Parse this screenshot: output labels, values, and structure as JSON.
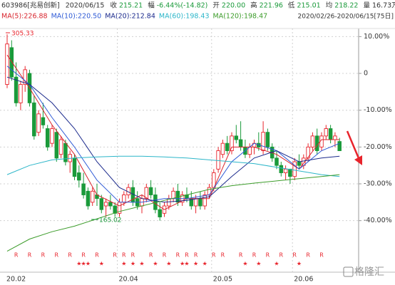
{
  "chart_data": {
    "type": "candlestick",
    "info": {
      "code": "603986[兆易创新]",
      "date": "2020/06/15",
      "fields": [
        {
          "label": "收",
          "value": "215.21",
          "color": "#1a9a3a"
        },
        {
          "label": "幅",
          "value": "-6.44%(-14.82)",
          "color": "#1a9a3a"
        },
        {
          "label": "开",
          "value": "220.00",
          "color": "#1a9a3a"
        },
        {
          "label": "高",
          "value": "221.96",
          "color": "#1a9a3a"
        },
        {
          "label": "低",
          "value": "215.01",
          "color": "#1a9a3a"
        },
        {
          "label": "均",
          "value": "218.22",
          "color": "#1a9a3a"
        },
        {
          "label": "量",
          "value": "16.73万",
          "color": "#333333"
        }
      ],
      "range": "2020/02/26-2020/06/15[75日]"
    },
    "categories": [
      "20.02",
      null,
      null,
      null,
      null,
      null,
      null,
      null,
      null,
      null,
      null,
      null,
      null,
      null,
      null,
      null,
      null,
      null,
      null,
      null,
      null,
      null,
      null,
      null,
      null,
      "20.04",
      null,
      null,
      null,
      null,
      null,
      null,
      null,
      null,
      null,
      null,
      null,
      null,
      null,
      null,
      null,
      null,
      null,
      null,
      null,
      null,
      "20.05",
      null,
      null,
      null,
      null,
      null,
      null,
      null,
      null,
      null,
      null,
      null,
      null,
      null,
      null,
      null,
      null,
      null,
      "20.06",
      null,
      null,
      null,
      null,
      null,
      null,
      null,
      null,
      null,
      null
    ],
    "open": [
      -3,
      7,
      -1,
      -8,
      -3,
      0,
      -8,
      -16,
      -12,
      -15,
      -19,
      -16,
      -22,
      -19,
      -24,
      -23,
      -27,
      -30,
      -32,
      -35,
      -33,
      -34,
      -36,
      -35,
      -36,
      -38,
      -35,
      -33,
      -31,
      -34,
      -36,
      -34,
      -31,
      -33,
      -37,
      -38,
      -36,
      -34,
      -32,
      -35,
      -33,
      -34,
      -36,
      -34,
      -36,
      -33,
      -31,
      -26,
      -22,
      -19,
      -21,
      -17,
      -18,
      -20,
      -22,
      -20,
      -19,
      -21,
      -16,
      -20,
      -23,
      -25,
      -27,
      -26,
      -28,
      -24,
      -25,
      -23,
      -20,
      -17,
      -20,
      -17,
      -15,
      -18,
      -18.5
    ],
    "high": [
      10.6,
      9,
      3,
      -2,
      2,
      1,
      -6,
      -10,
      -8,
      -14,
      -14,
      -15,
      -17,
      -18,
      -21,
      -22,
      -25,
      -27,
      -31,
      -31,
      -30,
      -33,
      -34,
      -33,
      -35,
      -34,
      -32,
      -30,
      -29,
      -32,
      -33,
      -30,
      -29,
      -31,
      -35,
      -35,
      -33,
      -31,
      -30,
      -32,
      -31,
      -32,
      -33,
      -32,
      -32,
      -30,
      -26,
      -20,
      -18,
      -17,
      -16,
      -14,
      -13,
      -18,
      -19,
      -18,
      -16,
      -13,
      -15,
      -19,
      -21,
      -24,
      -25,
      -26,
      -23,
      -22,
      -22,
      -19,
      -16,
      -15,
      -16,
      -14,
      -14,
      -16,
      -17.5
    ],
    "low": [
      -4,
      -2,
      -9,
      -10,
      -5,
      -9,
      -18,
      -17,
      -15,
      -21,
      -20,
      -24,
      -23,
      -25,
      -27,
      -29,
      -31,
      -34,
      -37,
      -36,
      -36,
      -38,
      -39,
      -37,
      -39,
      -39,
      -36,
      -34,
      -36,
      -37,
      -38,
      -35,
      -34,
      -38,
      -40,
      -39,
      -37,
      -35,
      -36,
      -36,
      -35,
      -37,
      -38,
      -37,
      -37,
      -34,
      -32,
      -27,
      -23,
      -22,
      -22,
      -19,
      -21,
      -23,
      -23,
      -22,
      -21,
      -22,
      -21,
      -24,
      -26,
      -28,
      -29,
      -30,
      -29,
      -26,
      -26,
      -24,
      -21,
      -22,
      -21,
      -18,
      -19,
      -20,
      -21
    ],
    "close": [
      8,
      -1,
      -8,
      -3,
      1,
      -8,
      -17,
      -11,
      -14,
      -20,
      -15,
      -23,
      -18,
      -24,
      -22,
      -28,
      -29,
      -33,
      -36,
      -32,
      -34,
      -37,
      -35,
      -36,
      -38,
      -35,
      -33,
      -31,
      -35,
      -36,
      -34,
      -31,
      -33,
      -37,
      -39,
      -36,
      -34,
      -32,
      -35,
      -33,
      -34,
      -36,
      -34,
      -36,
      -33,
      -31,
      -27,
      -21,
      -19,
      -21,
      -17,
      -18,
      -20,
      -22,
      -20,
      -19,
      -20,
      -16,
      -20,
      -23,
      -25,
      -27,
      -26,
      -28,
      -24,
      -25,
      -23,
      -20,
      -17,
      -21,
      -17,
      -15,
      -18,
      -17,
      -21
    ],
    "up_color": "#e8242c",
    "down_color": "#1a9a3a",
    "series": [
      {
        "name": "MA(5):226.88",
        "color": "#d8262e",
        "x": [
          0,
          5,
          10,
          15,
          20,
          25,
          30,
          35,
          40,
          45,
          50,
          55,
          60,
          65,
          70,
          74
        ],
        "values": [
          5,
          -4,
          -14,
          -22,
          -33,
          -36,
          -33,
          -37,
          -34,
          -34,
          -20,
          -20,
          -22,
          -26,
          -18,
          -18
        ]
      },
      {
        "name": "MA(10):220.50",
        "color": "#2f5bd6",
        "x": [
          0,
          5,
          10,
          15,
          20,
          25,
          30,
          35,
          40,
          45,
          50,
          55,
          60,
          65,
          70,
          74
        ],
        "values": [
          2,
          -3,
          -12,
          -20,
          -29,
          -35,
          -35,
          -34,
          -34,
          -33,
          -24,
          -19,
          -21,
          -26,
          -21,
          -19
        ]
      },
      {
        "name": "MA(20):212.84",
        "color": "#1b2a8c",
        "x": [
          0,
          5,
          10,
          15,
          20,
          25,
          30,
          35,
          40,
          45,
          50,
          55,
          60,
          65,
          70,
          74
        ],
        "values": [
          -1,
          -3,
          -8,
          -15,
          -24,
          -31,
          -34,
          -35,
          -34.5,
          -33.5,
          -28,
          -23,
          -21,
          -24,
          -23,
          -22.5
        ]
      },
      {
        "name": "MA(60):198.43",
        "color": "#2cb6c9",
        "x": [
          0,
          5,
          10,
          15,
          20,
          25,
          30,
          35,
          40,
          45,
          50,
          55,
          60,
          65,
          70,
          74
        ],
        "values": [
          -27.5,
          -25,
          -23.5,
          -23,
          -22.7,
          -22.5,
          -22.5,
          -22.7,
          -23,
          -23.5,
          -24,
          -24.5,
          -25.5,
          -26.5,
          -27.5,
          -28
        ]
      },
      {
        "name": "MA(120):198.47",
        "color": "#3c9c2a",
        "x": [
          0,
          5,
          10,
          15,
          20,
          25,
          30,
          35,
          40,
          45,
          50,
          55,
          60,
          65,
          70,
          74
        ],
        "values": [
          -48.3,
          -45,
          -43,
          -41.5,
          -39.5,
          -37.5,
          -36,
          -34.5,
          -33,
          -31.5,
          -30.5,
          -29.8,
          -29.2,
          -28.6,
          -28,
          -27.5
        ]
      }
    ],
    "ylim": [
      -54,
      12.2
    ],
    "yticks": [
      {
        "value": 10,
        "label": "10.00%"
      },
      0,
      {
        "value": -10,
        "label": "-10.00%"
      },
      {
        "value": -20,
        "label": "-20.00%"
      },
      {
        "value": -30,
        "label": "-30.00%"
      },
      {
        "value": -40,
        "label": "-40.00%"
      }
    ],
    "grid": true,
    "annotations": [
      "305.33",
      "165.02"
    ],
    "r_marker": "R",
    "star_marker": "★",
    "r_days": [
      2,
      5,
      8,
      11,
      14,
      17,
      20,
      24,
      26,
      28,
      32,
      35,
      38,
      40,
      42,
      46,
      48,
      52,
      55,
      58,
      61,
      64,
      67,
      70
    ],
    "star_days": [
      16,
      17,
      18,
      21,
      26,
      28,
      30,
      33,
      36,
      39,
      40,
      42,
      44,
      53,
      56,
      60,
      65
    ],
    "watermark": "格隆汇"
  }
}
